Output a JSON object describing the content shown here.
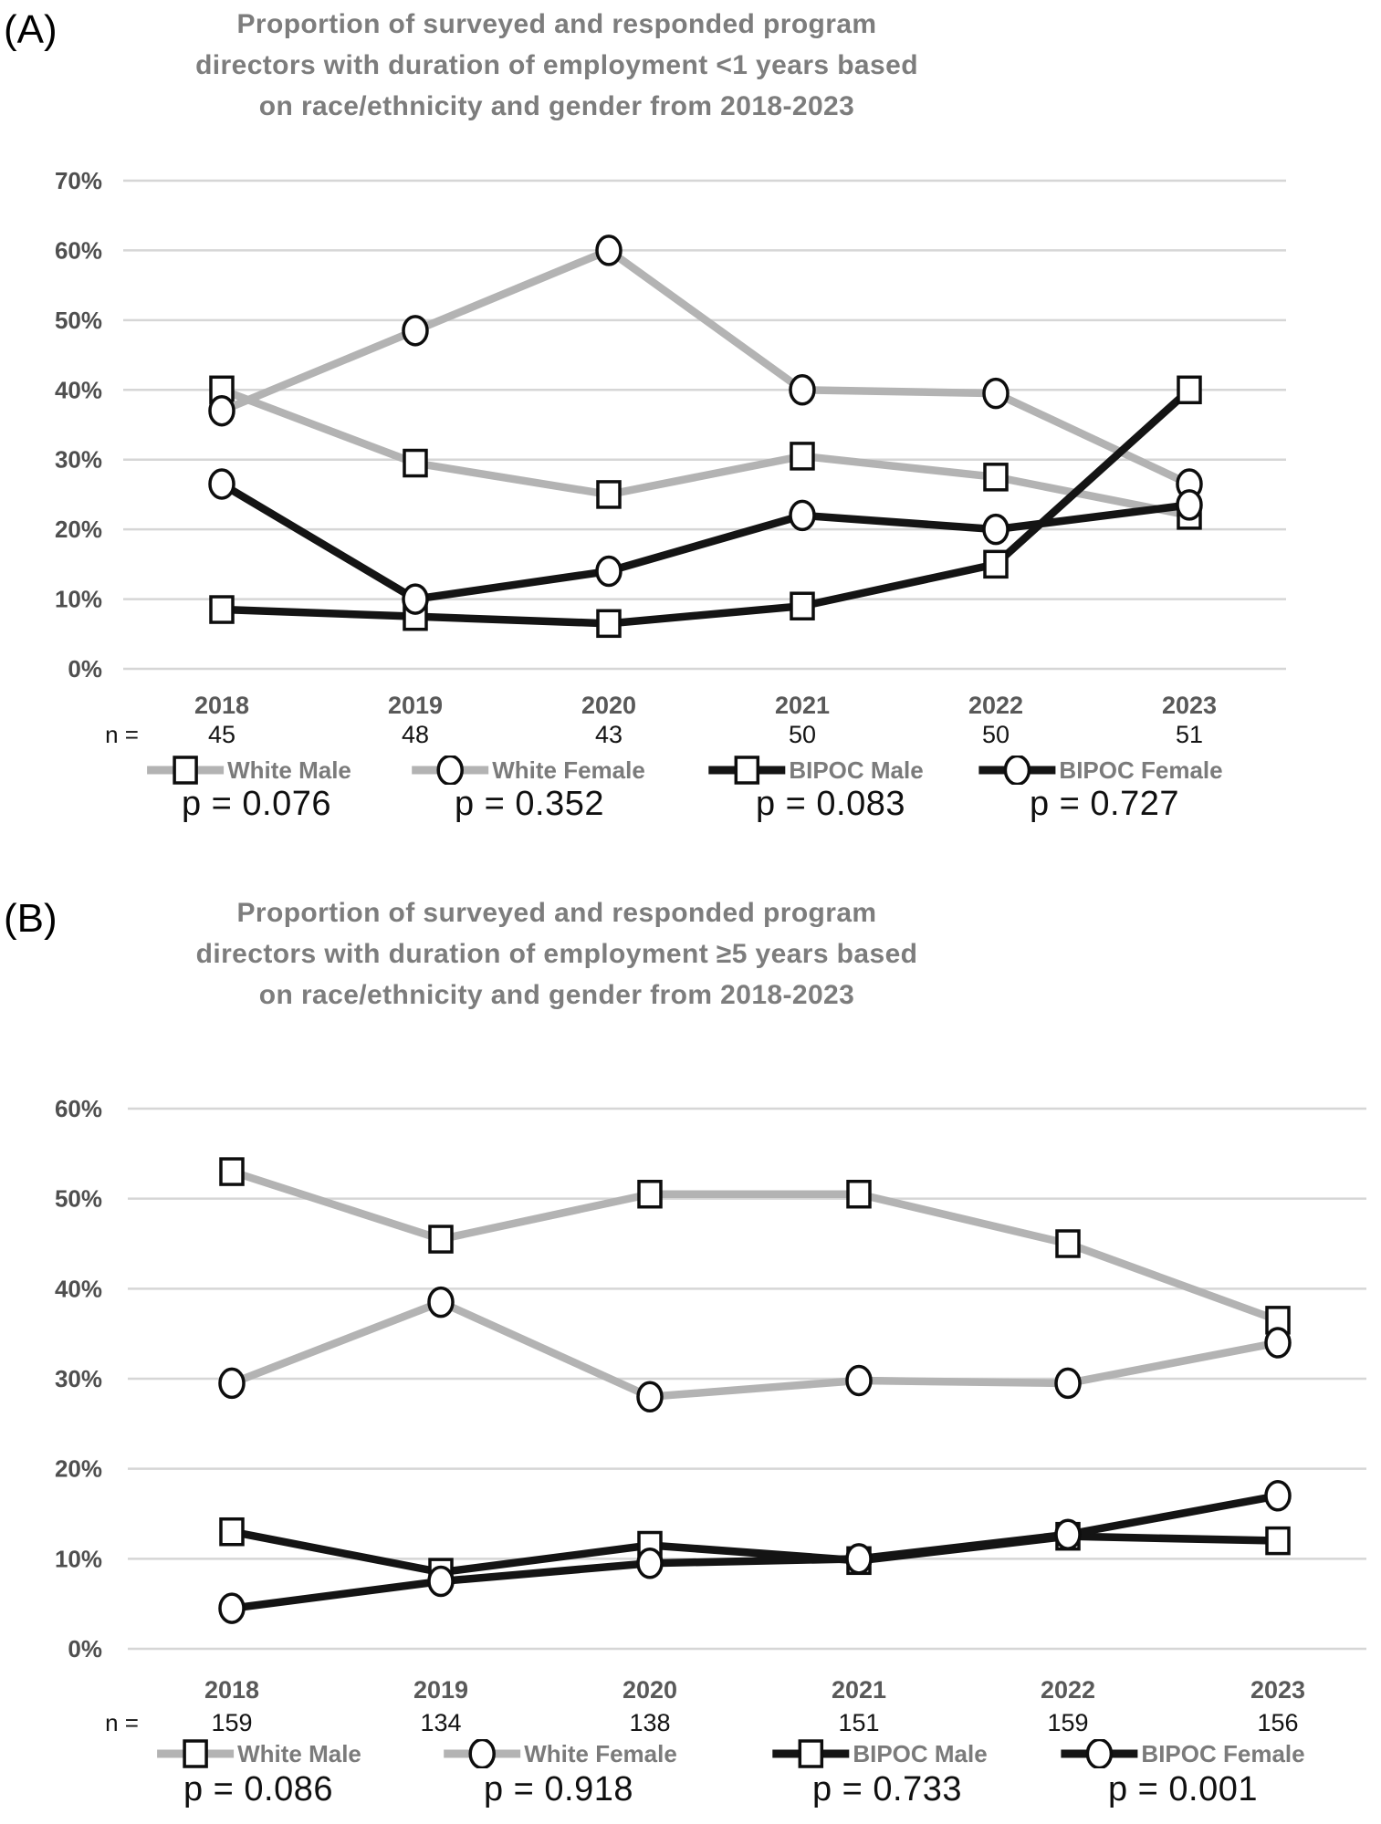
{
  "theme": {
    "grid_color": "#d6d6d6",
    "white_series_color": "#b3b3b3",
    "bipoc_series_color": "#141414",
    "marker_stroke": "#0d0d0d",
    "marker_fill": "#ffffff",
    "title_color": "#7d7d7d"
  },
  "chart_data": [
    {
      "type": "line",
      "panel_label": "(A)",
      "title": "Proportion of surveyed and responded program directors with duration of employment <1 years based on race/ethnicity and gender from 2018-2023",
      "title_lines": [
        "Proportion of surveyed and responded program",
        "directors with duration of employment <1 years based",
        "on race/ethnicity and gender from 2018-2023"
      ],
      "categories": [
        "2018",
        "2019",
        "2020",
        "2021",
        "2022",
        "2023"
      ],
      "n_label": "n =",
      "n_values": [
        "45",
        "48",
        "43",
        "50",
        "50",
        "51"
      ],
      "ylim": [
        0,
        70
      ],
      "y_tick_labels": [
        "0%",
        "10%",
        "20%",
        "30%",
        "40%",
        "50%",
        "60%",
        "70%"
      ],
      "grid": true,
      "legend_position": "bottom",
      "series": [
        {
          "name": "White Male",
          "marker": "square",
          "color": "#b3b3b3",
          "values": [
            40,
            29.5,
            25,
            30.5,
            27.5,
            22
          ],
          "p_value": "p = 0.076"
        },
        {
          "name": "White Female",
          "marker": "circle",
          "color": "#b3b3b3",
          "values": [
            37,
            48.5,
            60,
            40,
            39.5,
            26.5
          ],
          "p_value": "p = 0.352"
        },
        {
          "name": "BIPOC Male",
          "marker": "square",
          "color": "#141414",
          "values": [
            8.5,
            7.5,
            6.5,
            9,
            15,
            40
          ],
          "p_value": "p = 0.083"
        },
        {
          "name": "BIPOC Female",
          "marker": "circle",
          "color": "#141414",
          "values": [
            26.5,
            10,
            14,
            22,
            20,
            23.5
          ],
          "p_value": "p = 0.727"
        }
      ]
    },
    {
      "type": "line",
      "panel_label": "(B)",
      "title": "Proportion of surveyed and responded program directors with duration of employment ≥5 years based on race/ethnicity and gender from 2018-2023",
      "title_lines": [
        "Proportion of surveyed and responded program",
        "directors with duration of employment ≥5 years based",
        "on race/ethnicity and gender from 2018-2023"
      ],
      "categories": [
        "2018",
        "2019",
        "2020",
        "2021",
        "2022",
        "2023"
      ],
      "n_label": "n =",
      "n_values": [
        "159",
        "134",
        "138",
        "151",
        "159",
        "156"
      ],
      "ylim": [
        0,
        60
      ],
      "y_tick_labels": [
        "0%",
        "10%",
        "20%",
        "30%",
        "40%",
        "50%",
        "60%"
      ],
      "grid": true,
      "legend_position": "bottom",
      "series": [
        {
          "name": "White Male",
          "marker": "square",
          "color": "#b3b3b3",
          "values": [
            53,
            45.5,
            50.5,
            50.5,
            45,
            36.5
          ],
          "p_value": "p = 0.086"
        },
        {
          "name": "White Female",
          "marker": "circle",
          "color": "#b3b3b3",
          "values": [
            29.5,
            38.5,
            28,
            29.8,
            29.5,
            34
          ],
          "p_value": "p = 0.918"
        },
        {
          "name": "BIPOC Male",
          "marker": "square",
          "color": "#141414",
          "values": [
            13,
            8.5,
            11.5,
            9.8,
            12.5,
            12
          ],
          "p_value": "p = 0.733"
        },
        {
          "name": "BIPOC Female",
          "marker": "circle",
          "color": "#141414",
          "values": [
            4.5,
            7.5,
            9.5,
            10,
            12.7,
            17
          ],
          "p_value": "p = 0.001"
        }
      ]
    }
  ]
}
